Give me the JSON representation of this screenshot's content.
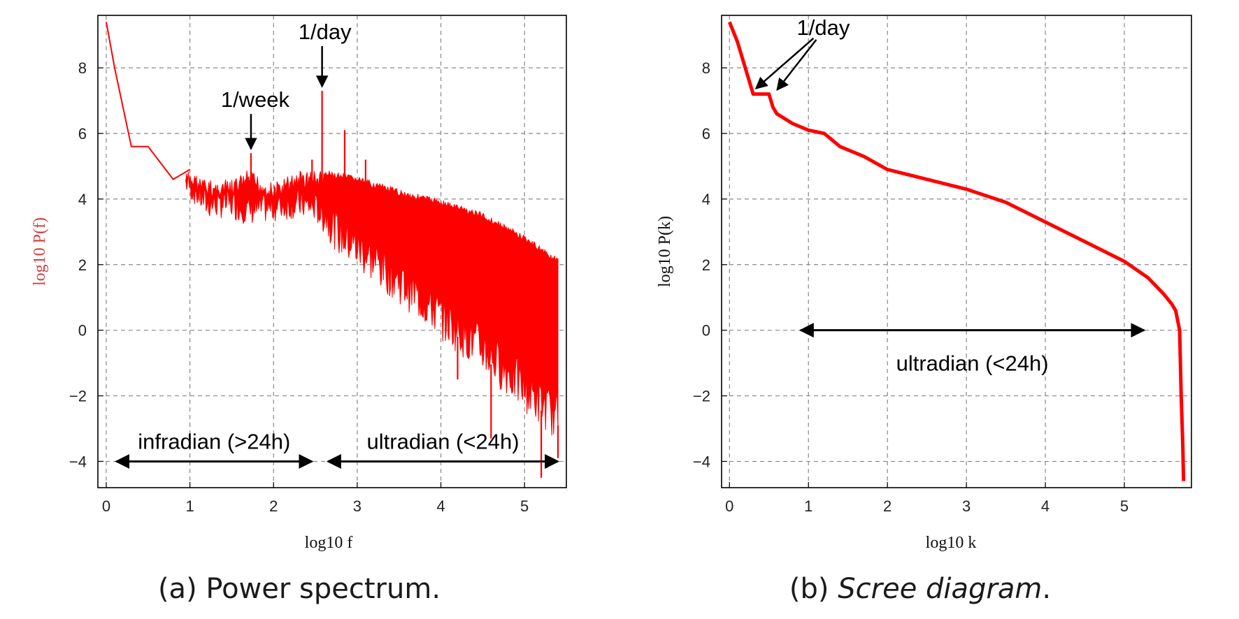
{
  "chart_data": [
    {
      "type": "line",
      "title": "",
      "caption": "(a) Power spectrum.",
      "xlabel": "log10 f",
      "ylabel": "log10 P(f)",
      "xlim": [
        -0.1,
        5.5
      ],
      "ylim": [
        -4.8,
        9.6
      ],
      "xticks": [
        0,
        1,
        2,
        3,
        4,
        5
      ],
      "yticks": [
        -4,
        -2,
        0,
        2,
        4,
        6,
        8
      ],
      "grid": true,
      "color": "#ff0000",
      "series": [
        {
          "name": "upper envelope",
          "x": [
            0.0,
            0.1,
            0.3,
            0.5,
            0.8,
            1.0,
            1.2,
            1.5,
            1.7,
            2.0,
            2.3,
            2.5,
            2.8,
            3.0,
            3.5,
            4.0,
            4.5,
            5.0,
            5.4
          ],
          "values": [
            9.4,
            8.0,
            5.6,
            5.6,
            4.6,
            4.9,
            4.6,
            4.6,
            4.9,
            4.5,
            4.9,
            4.9,
            4.8,
            4.7,
            4.3,
            4.0,
            3.6,
            2.9,
            2.2
          ]
        },
        {
          "name": "lower envelope",
          "x": [
            0.95,
            1.2,
            1.5,
            1.7,
            2.0,
            2.3,
            2.5,
            2.8,
            3.0,
            3.5,
            4.0,
            4.5,
            5.0,
            5.4
          ],
          "values": [
            4.1,
            3.4,
            3.4,
            3.2,
            3.3,
            3.4,
            3.3,
            2.2,
            1.8,
            0.8,
            -0.3,
            -1.3,
            -2.5,
            -3.4
          ]
        },
        {
          "name": "spikes",
          "x": [
            1.73,
            2.46,
            2.58,
            2.85,
            3.1,
            4.2,
            4.6,
            5.2,
            5.4
          ],
          "values": [
            5.4,
            5.2,
            7.3,
            6.1,
            5.2,
            -1.5,
            -3.3,
            -4.5,
            -3.9
          ]
        }
      ],
      "annotations": [
        {
          "text": "1/week",
          "x": 1.73,
          "y": 5.4
        },
        {
          "text": "1/day",
          "x": 2.58,
          "y": 7.3
        }
      ],
      "ranges": [
        {
          "text": "infradian (>24h)",
          "from": 0.12,
          "to": 2.46,
          "y": -4
        },
        {
          "text": "ultradian (<24h)",
          "from": 2.65,
          "to": 5.4,
          "y": -4
        }
      ]
    },
    {
      "type": "line",
      "title": "",
      "caption_prefix": "(b) ",
      "caption_italic": "Scree diagram",
      "caption_suffix": ".",
      "xlabel": "log10 k",
      "ylabel": "log10 P(k)",
      "xlim": [
        -0.1,
        5.85
      ],
      "ylim": [
        -4.8,
        9.6
      ],
      "xticks": [
        0,
        1,
        2,
        3,
        4,
        5
      ],
      "yticks": [
        -4,
        -2,
        0,
        2,
        4,
        6,
        8
      ],
      "grid": true,
      "color": "#ff0000",
      "series": [
        {
          "name": "eigenvalue spectrum",
          "x": [
            0.0,
            0.1,
            0.2,
            0.3,
            0.5,
            0.55,
            0.6,
            0.8,
            1.0,
            1.2,
            1.4,
            1.7,
            2.0,
            2.5,
            3.0,
            3.5,
            4.0,
            4.5,
            5.0,
            5.3,
            5.5,
            5.6,
            5.65,
            5.7,
            5.72,
            5.74,
            5.75
          ],
          "values": [
            9.4,
            8.8,
            8.0,
            7.2,
            7.2,
            6.8,
            6.6,
            6.3,
            6.1,
            6.0,
            5.6,
            5.3,
            4.9,
            4.6,
            4.3,
            3.9,
            3.3,
            2.7,
            2.1,
            1.6,
            1.1,
            0.8,
            0.6,
            0.0,
            -2.0,
            -3.5,
            -4.6
          ]
        }
      ],
      "annotations": [
        {
          "text": "1/day",
          "x": 0.3,
          "y": 7.2,
          "x2": 0.55,
          "y2": 7.2
        }
      ],
      "ranges": [
        {
          "text": "ultradian (<24h)",
          "from": 0.9,
          "to": 5.25,
          "y": 0
        }
      ]
    }
  ]
}
